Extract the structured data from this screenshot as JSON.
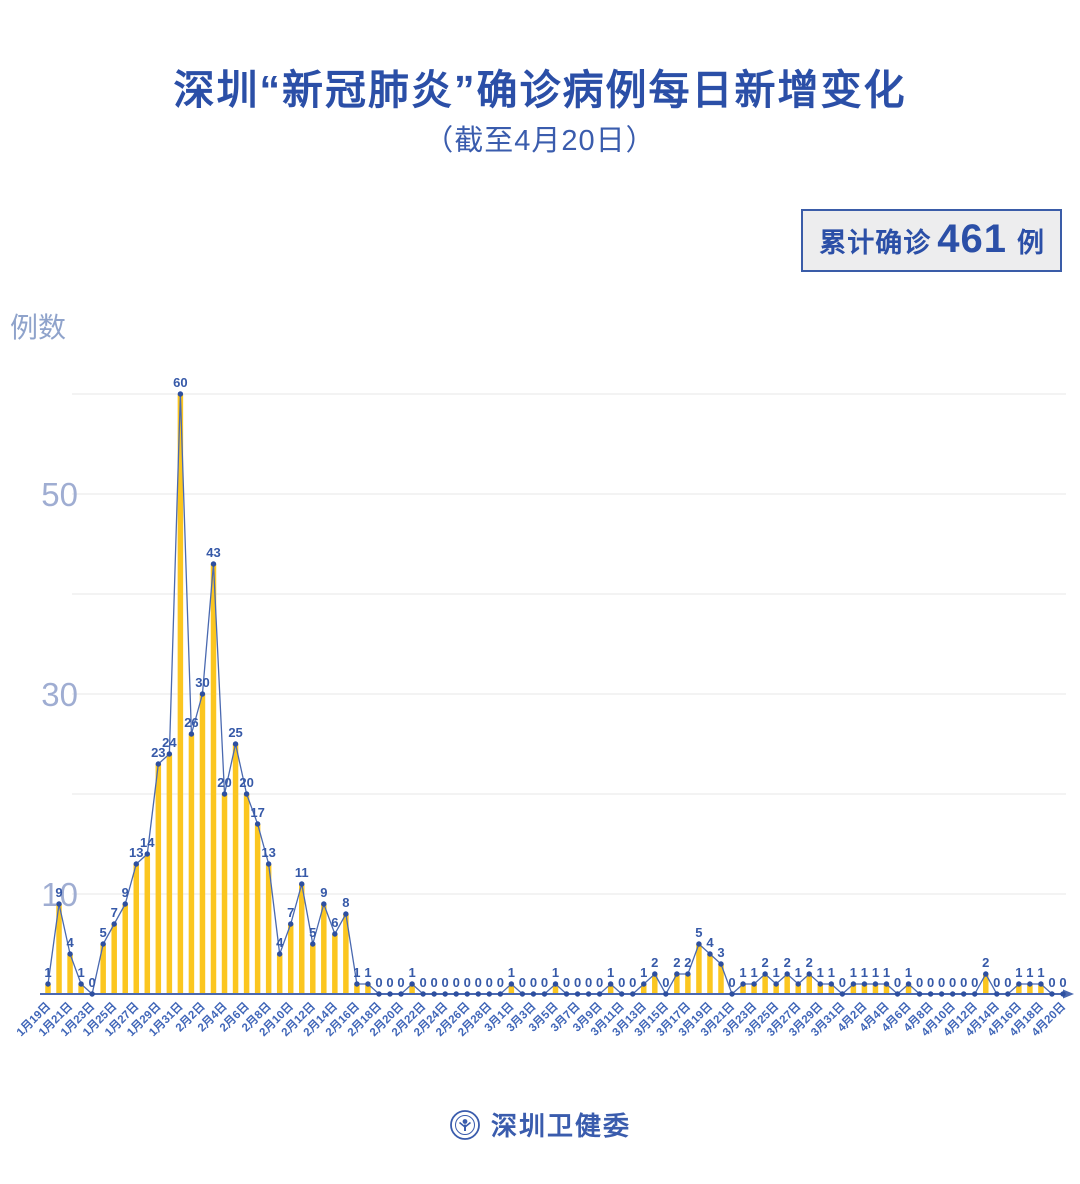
{
  "page": {
    "title": "深圳“新冠肺炎”确诊病例每日新增变化",
    "subtitle": "（截至4月20日）",
    "badge": {
      "label": "累计确诊",
      "number": "461",
      "unit": "例"
    },
    "footer": {
      "org_name": "深圳卫健委",
      "logo": "shenzhen-health-commission-emblem"
    }
  },
  "chart_data": {
    "type": "bar",
    "title": "深圳“新冠肺炎”确诊病例每日新增变化（截至4月20日）",
    "xlabel": "",
    "ylabel": "例数",
    "ylim": [
      0,
      62
    ],
    "grid": "on",
    "legend": "none",
    "y_ticks_labeled": [
      10,
      30,
      50
    ],
    "gridlines": [
      10,
      20,
      30,
      40,
      50,
      60
    ],
    "x_tick_every": 2,
    "x_tick_labels": [
      "1月19日",
      "1月21日",
      "1月23日",
      "1月25日",
      "1月27日",
      "1月29日",
      "1月31日",
      "2月2日",
      "2月4日",
      "2月6日",
      "2月8日",
      "2月10日",
      "2月12日",
      "2月14日",
      "2月16日",
      "2月18日",
      "2月20日",
      "2月22日",
      "2月24日",
      "2月26日",
      "2月28日",
      "3月1日",
      "3月3日",
      "3月5日",
      "3月7日",
      "3月9日",
      "3月11日",
      "3月13日",
      "3月15日",
      "3月17日",
      "3月19日",
      "3月21日",
      "3月23日",
      "3月25日",
      "3月27日",
      "3月29日",
      "3月31日",
      "4月2日",
      "4月4日",
      "4月6日",
      "4月8日",
      "4月10日",
      "4月12日",
      "4月14日",
      "4月16日",
      "4月18日",
      "4月20日"
    ],
    "values": [
      1,
      9,
      4,
      1,
      0,
      5,
      7,
      9,
      13,
      14,
      23,
      24,
      60,
      26,
      30,
      43,
      20,
      25,
      20,
      17,
      13,
      4,
      7,
      11,
      5,
      9,
      6,
      8,
      1,
      1,
      0,
      0,
      0,
      1,
      0,
      0,
      0,
      0,
      0,
      0,
      0,
      0,
      1,
      0,
      0,
      0,
      1,
      0,
      0,
      0,
      0,
      1,
      0,
      0,
      1,
      2,
      0,
      2,
      2,
      5,
      4,
      3,
      0,
      1,
      1,
      2,
      1,
      2,
      1,
      2,
      1,
      1,
      0,
      1,
      1,
      1,
      1,
      0,
      1,
      0,
      0,
      0,
      0,
      0,
      0,
      2,
      0,
      0,
      1,
      1,
      1,
      0,
      0
    ],
    "cumulative_total": 461
  },
  "colors": {
    "bar": "#fbc620",
    "line": "#4a69b0",
    "point": "#2d4fa0",
    "value_label": "#3659a8",
    "x_tick": "#4066b8",
    "y_tick": "#9fadd2",
    "grid": "#e7e7e7",
    "axis": "#4a69b0",
    "title": "#2b4fa7"
  }
}
